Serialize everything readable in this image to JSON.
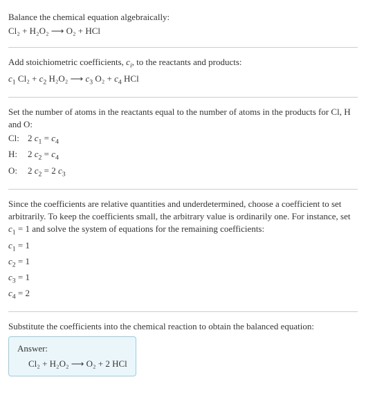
{
  "intro": {
    "line1": "Balance the chemical equation algebraically:",
    "eq": "Cl₂ + H₂O₂  ⟶  O₂ + HCl"
  },
  "stoich": {
    "intro_a": "Add stoichiometric coefficients, ",
    "ci": "c",
    "ci_sub": "i",
    "intro_b": ", to the reactants and products:",
    "eq_c1": "c",
    "eq_c1s": "1",
    "eq_sp1": " Cl₂ + ",
    "eq_c2": "c",
    "eq_c2s": "2",
    "eq_sp2": " H₂O₂  ⟶  ",
    "eq_c3": "c",
    "eq_c3s": "3",
    "eq_sp3": " O₂ + ",
    "eq_c4": "c",
    "eq_c4s": "4",
    "eq_sp4": " HCl"
  },
  "atoms": {
    "intro": "Set the number of atoms in the reactants equal to the number of atoms in the products for Cl, H and O:",
    "rows": [
      {
        "label": "Cl: ",
        "lhs_n": "2 ",
        "lhs_c": "c",
        "lhs_s": "1",
        "mid": " = ",
        "rhs_c": "c",
        "rhs_s": "4"
      },
      {
        "label": "H: ",
        "lhs_n": "2 ",
        "lhs_c": "c",
        "lhs_s": "2",
        "mid": " = ",
        "rhs_c": "c",
        "rhs_s": "4"
      },
      {
        "label": "O: ",
        "lhs_n": "2 ",
        "lhs_c": "c",
        "lhs_s": "2",
        "mid": " = 2 ",
        "rhs_c": "c",
        "rhs_s": "3"
      }
    ]
  },
  "arbitrary": {
    "text_a": "Since the coefficients are relative quantities and underdetermined, choose a coefficient to set arbitrarily. To keep the coefficients small, the arbitrary value is ordinarily one. For instance, set ",
    "c1": "c",
    "c1s": "1",
    "text_b": " = 1 and solve the system of equations for the remaining coefficients:",
    "sol": [
      {
        "c": "c",
        "s": "1",
        "v": " = 1"
      },
      {
        "c": "c",
        "s": "2",
        "v": " = 1"
      },
      {
        "c": "c",
        "s": "3",
        "v": " = 1"
      },
      {
        "c": "c",
        "s": "4",
        "v": " = 2"
      }
    ]
  },
  "subst": {
    "text": "Substitute the coefficients into the chemical reaction to obtain the balanced equation:"
  },
  "answer": {
    "label": "Answer:",
    "eq": "Cl₂ + H₂O₂  ⟶  O₂ + 2 HCl"
  },
  "colors": {
    "text": "#333333",
    "divider": "#cccccc",
    "answer_bg": "#ebf6fb",
    "answer_border": "#99ccdd"
  }
}
